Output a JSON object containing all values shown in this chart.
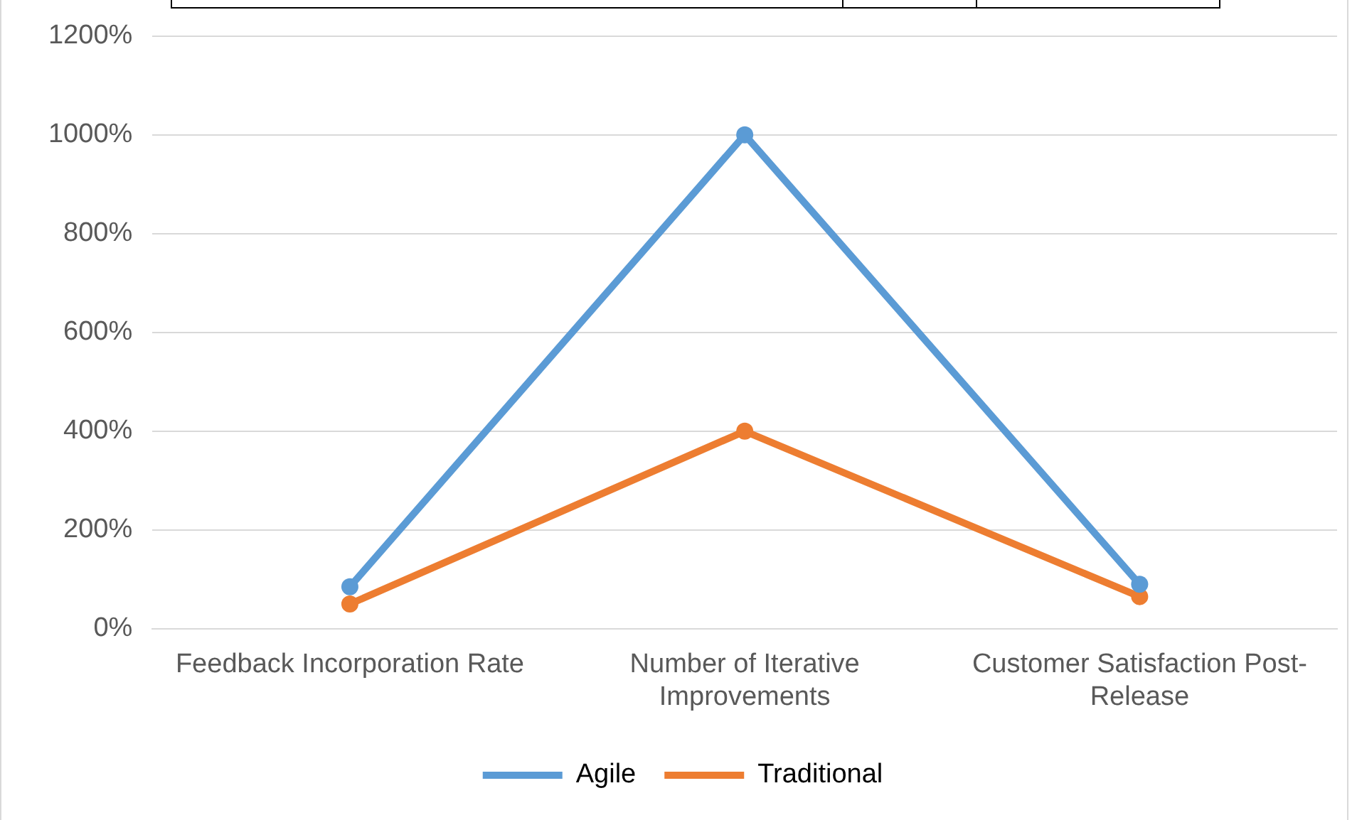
{
  "chart_data": {
    "type": "line",
    "categories": [
      "Feedback Incorporation Rate",
      "Number of Iterative Improvements",
      "Customer Satisfaction Post-Release"
    ],
    "series": [
      {
        "name": "Agile",
        "color": "#5b9bd5",
        "values": [
          85,
          1000,
          90
        ]
      },
      {
        "name": "Traditional",
        "color": "#ed7d31",
        "values": [
          50,
          400,
          65
        ]
      }
    ],
    "ylim": [
      0,
      1200
    ],
    "yticks": [
      {
        "value": 0,
        "label": "0%"
      },
      {
        "value": 200,
        "label": "200%"
      },
      {
        "value": 400,
        "label": "400%"
      },
      {
        "value": 600,
        "label": "600%"
      },
      {
        "value": 800,
        "label": "800%"
      },
      {
        "value": 1000,
        "label": "1000%"
      },
      {
        "value": 1200,
        "label": "1200%"
      }
    ],
    "grid": "y",
    "legend": "bottom",
    "marker": "circle",
    "line_style": "solid"
  }
}
